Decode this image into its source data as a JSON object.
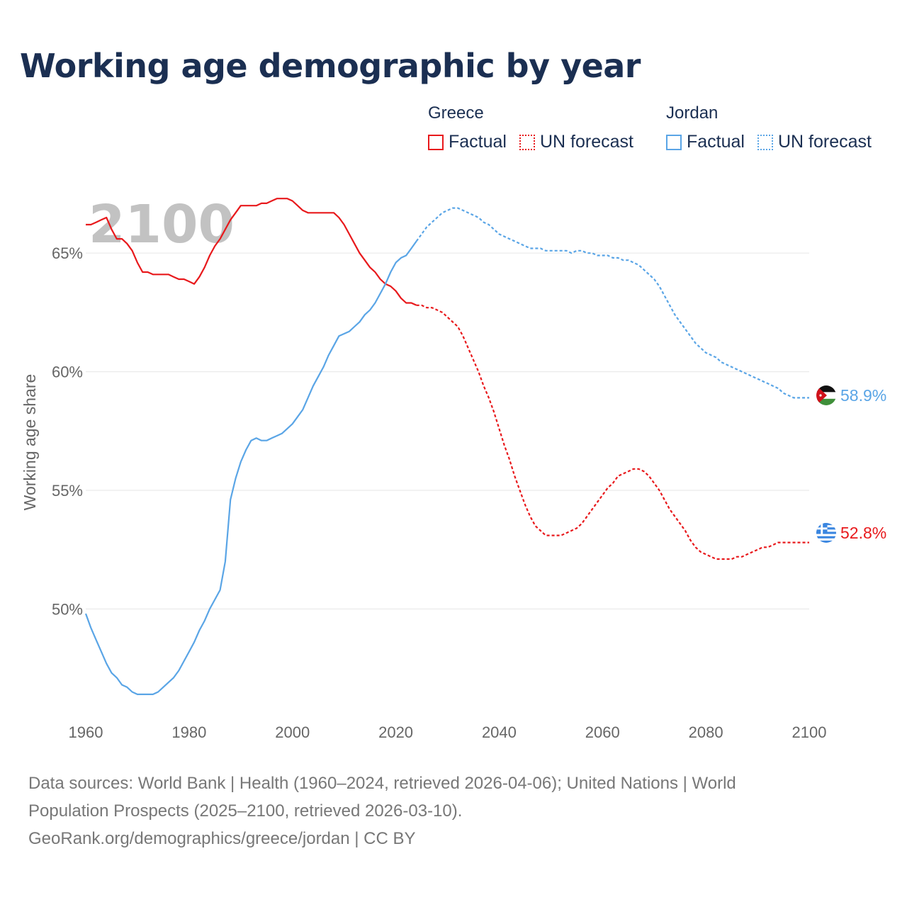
{
  "title": "Working age demographic by year",
  "legend": {
    "groups": [
      {
        "name": "Greece",
        "color": "#e8191c",
        "factual_label": "Factual",
        "forecast_label": "UN forecast"
      },
      {
        "name": "Jordan",
        "color": "#5aa5e6",
        "factual_label": "Factual",
        "forecast_label": "UN forecast"
      }
    ]
  },
  "year_watermark": "2100",
  "source_lines": [
    "Data sources: World Bank | Health (1960–2024, retrieved 2026-04-06); United Nations | World",
    "Population Prospects (2025–2100, retrieved 2026-03-10).",
    "GeoRank.org/demographics/greece/jordan | CC BY"
  ],
  "colors": {
    "greece": "#e8191c",
    "jordan": "#5aa5e6",
    "title": "#1b2f52",
    "grid": "#e6e6e6",
    "axis_text": "#666666",
    "watermark": "#c2c2c2"
  },
  "chart_data": {
    "type": "line",
    "title": "Working age demographic by year",
    "xlabel": "",
    "ylabel": "Working age share",
    "xlim": [
      1960,
      2100
    ],
    "ylim": [
      45.5,
      68.5
    ],
    "x_ticks": [
      1960,
      1980,
      2000,
      2020,
      2040,
      2060,
      2080,
      2100
    ],
    "x_tick_labels": [
      "1960",
      "1980",
      "2000",
      "2020",
      "2040",
      "2060",
      "2080",
      "2100"
    ],
    "y_ticks": [
      50,
      55,
      60,
      65
    ],
    "y_tick_labels": [
      "50%",
      "55%",
      "60%",
      "65%"
    ],
    "grid": true,
    "factual_end_year": 2024,
    "series": [
      {
        "name": "Greece",
        "color": "#e8191c",
        "end_label": "52.8%",
        "flag": "greece",
        "points": [
          [
            1960,
            66.2
          ],
          [
            1961,
            66.2
          ],
          [
            1962,
            66.3
          ],
          [
            1963,
            66.4
          ],
          [
            1964,
            66.5
          ],
          [
            1965,
            66.0
          ],
          [
            1966,
            65.6
          ],
          [
            1967,
            65.6
          ],
          [
            1968,
            65.4
          ],
          [
            1969,
            65.1
          ],
          [
            1970,
            64.6
          ],
          [
            1971,
            64.2
          ],
          [
            1972,
            64.2
          ],
          [
            1973,
            64.1
          ],
          [
            1974,
            64.1
          ],
          [
            1975,
            64.1
          ],
          [
            1976,
            64.1
          ],
          [
            1977,
            64.0
          ],
          [
            1978,
            63.9
          ],
          [
            1979,
            63.9
          ],
          [
            1980,
            63.8
          ],
          [
            1981,
            63.7
          ],
          [
            1982,
            64.0
          ],
          [
            1983,
            64.4
          ],
          [
            1984,
            64.9
          ],
          [
            1985,
            65.3
          ],
          [
            1986,
            65.6
          ],
          [
            1987,
            66.0
          ],
          [
            1988,
            66.4
          ],
          [
            1989,
            66.7
          ],
          [
            1990,
            67.0
          ],
          [
            1991,
            67.0
          ],
          [
            1992,
            67.0
          ],
          [
            1993,
            67.0
          ],
          [
            1994,
            67.1
          ],
          [
            1995,
            67.1
          ],
          [
            1996,
            67.2
          ],
          [
            1997,
            67.3
          ],
          [
            1998,
            67.3
          ],
          [
            1999,
            67.3
          ],
          [
            2000,
            67.2
          ],
          [
            2001,
            67.0
          ],
          [
            2002,
            66.8
          ],
          [
            2003,
            66.7
          ],
          [
            2004,
            66.7
          ],
          [
            2005,
            66.7
          ],
          [
            2006,
            66.7
          ],
          [
            2007,
            66.7
          ],
          [
            2008,
            66.7
          ],
          [
            2009,
            66.5
          ],
          [
            2010,
            66.2
          ],
          [
            2011,
            65.8
          ],
          [
            2012,
            65.4
          ],
          [
            2013,
            65.0
          ],
          [
            2014,
            64.7
          ],
          [
            2015,
            64.4
          ],
          [
            2016,
            64.2
          ],
          [
            2017,
            63.9
          ],
          [
            2018,
            63.7
          ],
          [
            2019,
            63.6
          ],
          [
            2020,
            63.4
          ],
          [
            2021,
            63.1
          ],
          [
            2022,
            62.9
          ],
          [
            2023,
            62.9
          ],
          [
            2024,
            62.8
          ],
          [
            2025,
            62.8
          ],
          [
            2026,
            62.7
          ],
          [
            2027,
            62.7
          ],
          [
            2028,
            62.6
          ],
          [
            2029,
            62.5
          ],
          [
            2030,
            62.3
          ],
          [
            2031,
            62.1
          ],
          [
            2032,
            61.9
          ],
          [
            2033,
            61.5
          ],
          [
            2034,
            61.0
          ],
          [
            2035,
            60.5
          ],
          [
            2036,
            60.0
          ],
          [
            2037,
            59.4
          ],
          [
            2038,
            58.9
          ],
          [
            2039,
            58.3
          ],
          [
            2040,
            57.6
          ],
          [
            2041,
            56.9
          ],
          [
            2042,
            56.3
          ],
          [
            2043,
            55.6
          ],
          [
            2044,
            55.0
          ],
          [
            2045,
            54.4
          ],
          [
            2046,
            53.9
          ],
          [
            2047,
            53.5
          ],
          [
            2048,
            53.3
          ],
          [
            2049,
            53.1
          ],
          [
            2050,
            53.1
          ],
          [
            2051,
            53.1
          ],
          [
            2052,
            53.1
          ],
          [
            2053,
            53.2
          ],
          [
            2054,
            53.3
          ],
          [
            2055,
            53.4
          ],
          [
            2056,
            53.6
          ],
          [
            2057,
            53.9
          ],
          [
            2058,
            54.2
          ],
          [
            2059,
            54.5
          ],
          [
            2060,
            54.8
          ],
          [
            2061,
            55.1
          ],
          [
            2062,
            55.3
          ],
          [
            2063,
            55.6
          ],
          [
            2064,
            55.7
          ],
          [
            2065,
            55.8
          ],
          [
            2066,
            55.9
          ],
          [
            2067,
            55.9
          ],
          [
            2068,
            55.8
          ],
          [
            2069,
            55.6
          ],
          [
            2070,
            55.3
          ],
          [
            2071,
            55.0
          ],
          [
            2072,
            54.6
          ],
          [
            2073,
            54.2
          ],
          [
            2074,
            53.9
          ],
          [
            2075,
            53.6
          ],
          [
            2076,
            53.3
          ],
          [
            2077,
            52.9
          ],
          [
            2078,
            52.6
          ],
          [
            2079,
            52.4
          ],
          [
            2080,
            52.3
          ],
          [
            2081,
            52.2
          ],
          [
            2082,
            52.1
          ],
          [
            2083,
            52.1
          ],
          [
            2084,
            52.1
          ],
          [
            2085,
            52.1
          ],
          [
            2086,
            52.2
          ],
          [
            2087,
            52.2
          ],
          [
            2088,
            52.3
          ],
          [
            2089,
            52.4
          ],
          [
            2090,
            52.5
          ],
          [
            2091,
            52.6
          ],
          [
            2092,
            52.6
          ],
          [
            2093,
            52.7
          ],
          [
            2094,
            52.8
          ],
          [
            2100,
            52.8
          ]
        ]
      },
      {
        "name": "Jordan",
        "color": "#5aa5e6",
        "end_label": "58.9%",
        "flag": "jordan",
        "points": [
          [
            1960,
            49.8
          ],
          [
            1961,
            49.2
          ],
          [
            1962,
            48.7
          ],
          [
            1963,
            48.2
          ],
          [
            1964,
            47.7
          ],
          [
            1965,
            47.3
          ],
          [
            1966,
            47.1
          ],
          [
            1967,
            46.8
          ],
          [
            1968,
            46.7
          ],
          [
            1969,
            46.5
          ],
          [
            1970,
            46.4
          ],
          [
            1971,
            46.4
          ],
          [
            1972,
            46.4
          ],
          [
            1973,
            46.4
          ],
          [
            1974,
            46.5
          ],
          [
            1975,
            46.7
          ],
          [
            1976,
            46.9
          ],
          [
            1977,
            47.1
          ],
          [
            1978,
            47.4
          ],
          [
            1979,
            47.8
          ],
          [
            1980,
            48.2
          ],
          [
            1981,
            48.6
          ],
          [
            1982,
            49.1
          ],
          [
            1983,
            49.5
          ],
          [
            1984,
            50.0
          ],
          [
            1985,
            50.4
          ],
          [
            1986,
            50.8
          ],
          [
            1987,
            52.0
          ],
          [
            1988,
            54.6
          ],
          [
            1989,
            55.5
          ],
          [
            1990,
            56.2
          ],
          [
            1991,
            56.7
          ],
          [
            1992,
            57.1
          ],
          [
            1993,
            57.2
          ],
          [
            1994,
            57.1
          ],
          [
            1995,
            57.1
          ],
          [
            1996,
            57.2
          ],
          [
            1997,
            57.3
          ],
          [
            1998,
            57.4
          ],
          [
            1999,
            57.6
          ],
          [
            2000,
            57.8
          ],
          [
            2001,
            58.1
          ],
          [
            2002,
            58.4
          ],
          [
            2003,
            58.9
          ],
          [
            2004,
            59.4
          ],
          [
            2005,
            59.8
          ],
          [
            2006,
            60.2
          ],
          [
            2007,
            60.7
          ],
          [
            2008,
            61.1
          ],
          [
            2009,
            61.5
          ],
          [
            2010,
            61.6
          ],
          [
            2011,
            61.7
          ],
          [
            2012,
            61.9
          ],
          [
            2013,
            62.1
          ],
          [
            2014,
            62.4
          ],
          [
            2015,
            62.6
          ],
          [
            2016,
            62.9
          ],
          [
            2017,
            63.3
          ],
          [
            2018,
            63.7
          ],
          [
            2019,
            64.2
          ],
          [
            2020,
            64.6
          ],
          [
            2021,
            64.8
          ],
          [
            2022,
            64.9
          ],
          [
            2023,
            65.2
          ],
          [
            2024,
            65.5
          ],
          [
            2025,
            65.8
          ],
          [
            2026,
            66.1
          ],
          [
            2027,
            66.3
          ],
          [
            2028,
            66.5
          ],
          [
            2029,
            66.7
          ],
          [
            2030,
            66.8
          ],
          [
            2031,
            66.9
          ],
          [
            2032,
            66.9
          ],
          [
            2033,
            66.8
          ],
          [
            2034,
            66.7
          ],
          [
            2035,
            66.6
          ],
          [
            2036,
            66.5
          ],
          [
            2037,
            66.3
          ],
          [
            2038,
            66.2
          ],
          [
            2039,
            66.0
          ],
          [
            2040,
            65.8
          ],
          [
            2041,
            65.7
          ],
          [
            2042,
            65.6
          ],
          [
            2043,
            65.5
          ],
          [
            2044,
            65.4
          ],
          [
            2045,
            65.3
          ],
          [
            2046,
            65.2
          ],
          [
            2047,
            65.2
          ],
          [
            2048,
            65.2
          ],
          [
            2049,
            65.1
          ],
          [
            2050,
            65.1
          ],
          [
            2051,
            65.1
          ],
          [
            2052,
            65.1
          ],
          [
            2053,
            65.1
          ],
          [
            2054,
            65.0
          ],
          [
            2055,
            65.1
          ],
          [
            2056,
            65.1
          ],
          [
            2057,
            65.0
          ],
          [
            2058,
            65.0
          ],
          [
            2059,
            64.9
          ],
          [
            2060,
            64.9
          ],
          [
            2061,
            64.9
          ],
          [
            2062,
            64.8
          ],
          [
            2063,
            64.8
          ],
          [
            2064,
            64.7
          ],
          [
            2065,
            64.7
          ],
          [
            2066,
            64.6
          ],
          [
            2067,
            64.5
          ],
          [
            2068,
            64.3
          ],
          [
            2069,
            64.1
          ],
          [
            2070,
            63.9
          ],
          [
            2071,
            63.6
          ],
          [
            2072,
            63.2
          ],
          [
            2073,
            62.8
          ],
          [
            2074,
            62.4
          ],
          [
            2075,
            62.1
          ],
          [
            2076,
            61.8
          ],
          [
            2077,
            61.5
          ],
          [
            2078,
            61.2
          ],
          [
            2079,
            61.0
          ],
          [
            2080,
            60.8
          ],
          [
            2081,
            60.7
          ],
          [
            2082,
            60.6
          ],
          [
            2083,
            60.4
          ],
          [
            2084,
            60.3
          ],
          [
            2085,
            60.2
          ],
          [
            2086,
            60.1
          ],
          [
            2087,
            60.0
          ],
          [
            2088,
            59.9
          ],
          [
            2089,
            59.8
          ],
          [
            2090,
            59.7
          ],
          [
            2091,
            59.6
          ],
          [
            2092,
            59.5
          ],
          [
            2093,
            59.4
          ],
          [
            2094,
            59.3
          ],
          [
            2095,
            59.1
          ],
          [
            2096,
            59.0
          ],
          [
            2097,
            58.9
          ],
          [
            2100,
            58.9
          ]
        ]
      }
    ]
  }
}
